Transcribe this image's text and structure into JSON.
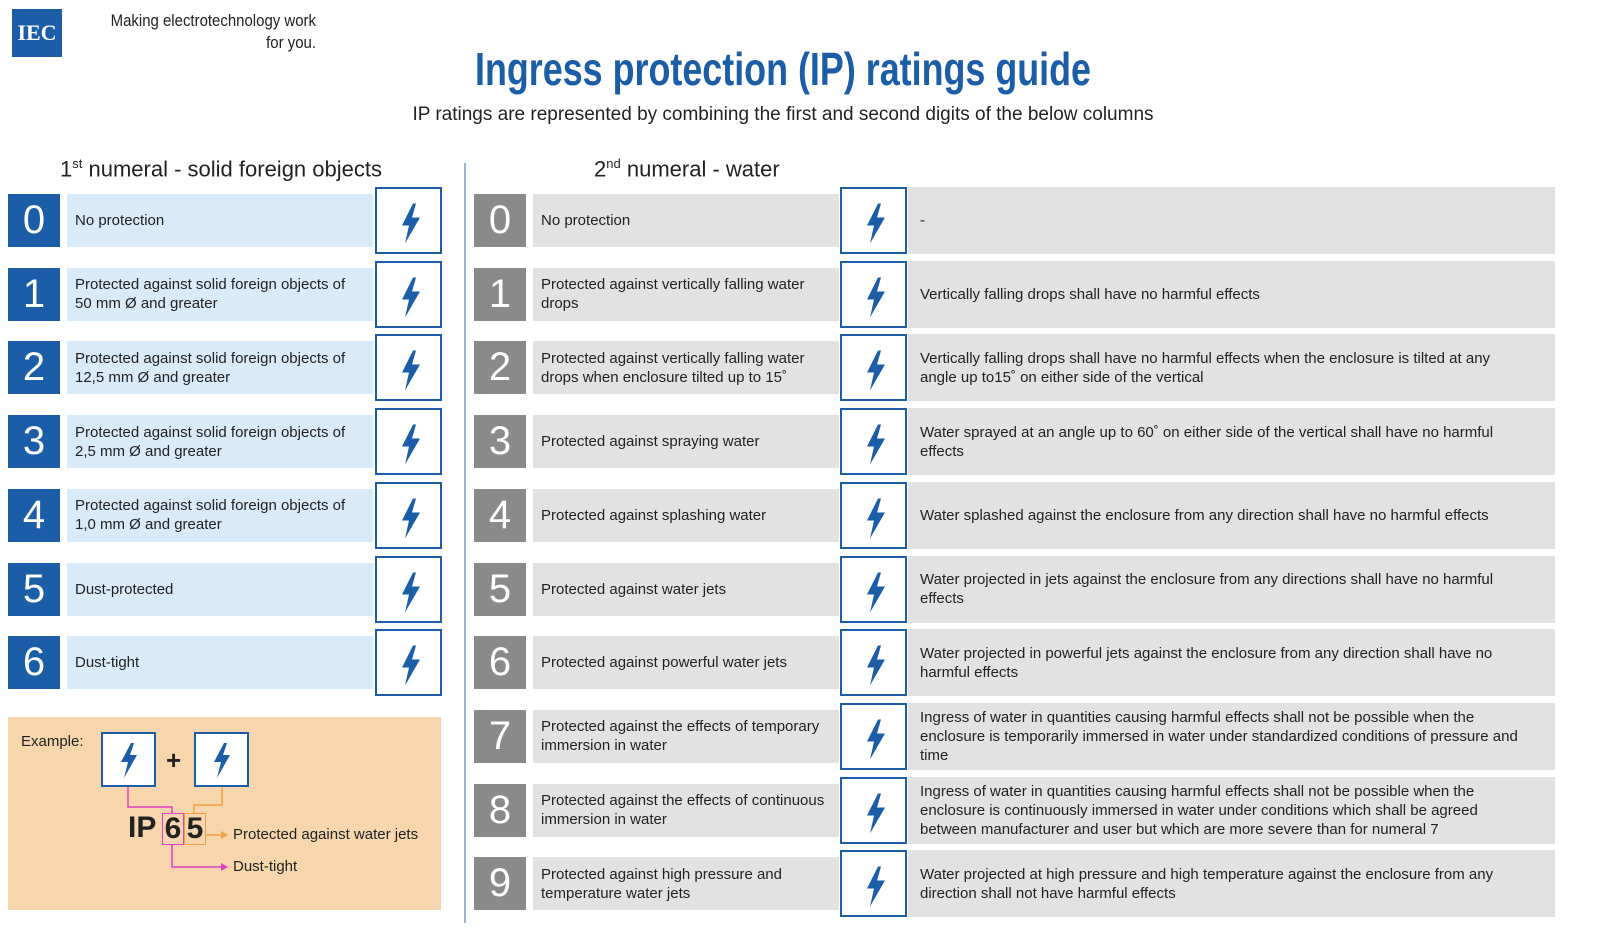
{
  "header": {
    "logo": "IEC",
    "tagline": [
      "Making  electrotechnology work",
      "for you."
    ],
    "title": "Ingress protection (IP) ratings guide",
    "subtitle": "IP ratings are represented by combining the first and second digits of the below columns"
  },
  "solids": {
    "heading": {
      "numeral": "1",
      "suffix": "st",
      "text": "numeral - solid foreign objects"
    },
    "rows": [
      {
        "digit": 0,
        "text": "No protection"
      },
      {
        "digit": 1,
        "text": "Protected against solid foreign objects of 50 mm Ø and greater"
      },
      {
        "digit": 2,
        "text": "Protected against solid foreign objects of 12,5 mm Ø and greater"
      },
      {
        "digit": 3,
        "text": "Protected against solid foreign objects of 2,5 mm Ø and greater"
      },
      {
        "digit": 4,
        "text": "Protected against solid foreign objects of 1,0 mm Ø and greater"
      },
      {
        "digit": 5,
        "text": "Dust-protected"
      },
      {
        "digit": 6,
        "text": "Dust-tight"
      }
    ]
  },
  "example": {
    "label": "Example:",
    "plus": "+",
    "prefix": "IP",
    "first": "6",
    "second": "5",
    "second_meaning": "Protected against water jets",
    "first_meaning": "Dust-tight"
  },
  "water": {
    "heading": {
      "numeral": "2",
      "suffix": "nd",
      "text": "numeral - water"
    },
    "rows": [
      {
        "digit": 0,
        "text": "No protection",
        "detail": "-"
      },
      {
        "digit": 1,
        "text": "Protected against vertically falling water drops",
        "detail": "Vertically falling drops shall have no harmful effects"
      },
      {
        "digit": 2,
        "text": "Protected against vertically falling water drops when enclosure tilted up to 15˚",
        "detail": "Vertically falling drops shall have no harmful effects when the enclosure is tilted at any angle up to15˚ on either side of the vertical"
      },
      {
        "digit": 3,
        "text": "Protected against spraying water",
        "detail": "Water sprayed at an angle up to 60˚ on either side of the vertical shall have no harmful effects"
      },
      {
        "digit": 4,
        "text": "Protected against splashing water",
        "detail": "Water splashed against the enclosure from any direction shall have no harmful effects"
      },
      {
        "digit": 5,
        "text": "Protected against water jets",
        "detail": "Water projected in jets against the enclosure from any directions shall have no harmful effects"
      },
      {
        "digit": 6,
        "text": "Protected against powerful water jets",
        "detail": "Water projected in powerful jets against the enclosure from any direction shall have no harmful effects"
      },
      {
        "digit": 7,
        "text": "Protected against the effects of temporary immersion in water",
        "detail": "Ingress of water in quantities causing harmful effects shall not be possible when the enclosure is temporarily immersed in water under standardized conditions of pressure and time"
      },
      {
        "digit": 8,
        "text": "Protected against the effects of continuous immersion in water",
        "detail": "Ingress of water in quantities causing harmful effects shall not be possible when the enclosure is continuously immersed in water under conditions which shall be agreed between manufacturer and user but which are more severe than for numeral 7"
      },
      {
        "digit": 9,
        "text": "Protected against high pressure and temperature water jets",
        "detail": "Water projected at high pressure and high temperature against the enclosure from any direction shall not have harmful effects"
      }
    ]
  }
}
